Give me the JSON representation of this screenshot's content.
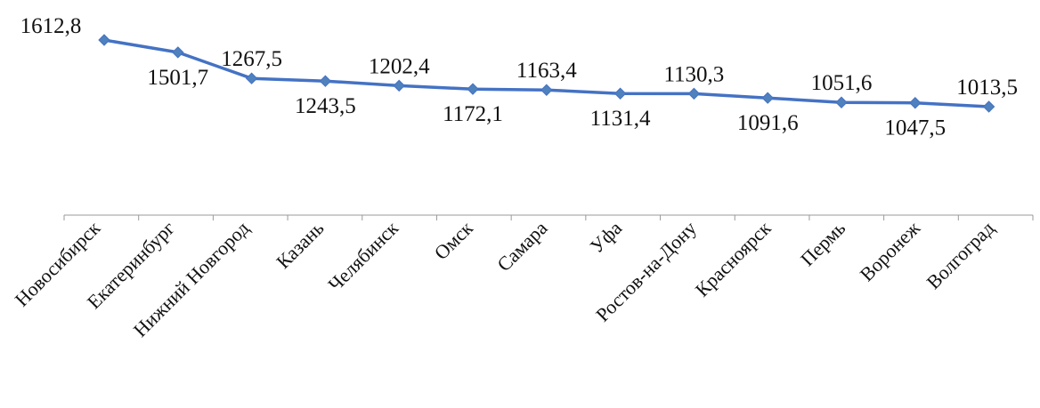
{
  "chart_data": {
    "type": "line",
    "title": "",
    "xlabel": "",
    "ylabel": "",
    "grid": false,
    "legend": "none",
    "categories": [
      "Новосибирск",
      "Екатеринбург",
      "Нижний Новгород",
      "Казань",
      "Челябинск",
      "Омск",
      "Самара",
      "Уфа",
      "Ростов-на-Дону",
      "Красноярск",
      "Пермь",
      "Воронеж",
      "Волгоград"
    ],
    "series": [
      {
        "values": [
          1612.8,
          1501.7,
          1267.5,
          1243.5,
          1202.4,
          1172.1,
          1163.4,
          1131.4,
          1130.3,
          1091.6,
          1051.6,
          1047.5,
          1013.5
        ],
        "labels": [
          "1612,8",
          "1501,7",
          "1267,5",
          "1243,5",
          "1202,4",
          "1172,1",
          "1163,4",
          "1131,4",
          "1130,3",
          "1091,6",
          "1051,6",
          "1047,5",
          "1013,5"
        ],
        "color": "#4472C4",
        "marker_color": "#4F81BD"
      }
    ],
    "highlight_category": "Омск",
    "highlight_color": "#E8201C",
    "label_color": "#111111"
  }
}
